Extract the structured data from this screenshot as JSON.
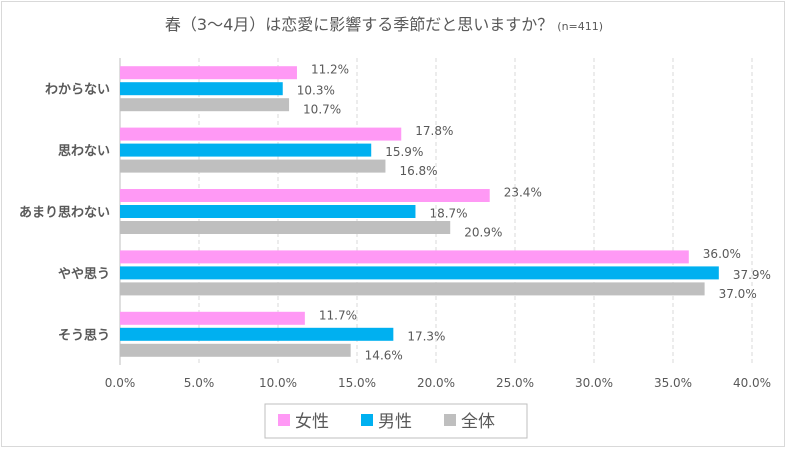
{
  "chart_data": {
    "type": "bar",
    "orientation": "horizontal",
    "title": "春（3～4月）は恋愛に影響する季節だと思いますか？",
    "subtitle": "(n=411)",
    "categories": [
      "わからない",
      "思わない",
      "あまり思わない",
      "やや思う",
      "そう思う"
    ],
    "series": [
      {
        "name": "女性",
        "color": "#FF99F5",
        "values": [
          11.2,
          17.8,
          23.4,
          36.0,
          11.7
        ]
      },
      {
        "name": "男性",
        "color": "#00B0F0",
        "values": [
          10.3,
          15.9,
          18.7,
          37.9,
          17.3
        ]
      },
      {
        "name": "全体",
        "color": "#BFBFBF",
        "values": [
          10.7,
          16.8,
          20.9,
          37.0,
          14.6
        ]
      }
    ],
    "xlim": [
      0,
      40
    ],
    "xticks": [
      "0.0%",
      "5.0%",
      "10.0%",
      "15.0%",
      "20.0%",
      "25.0%",
      "30.0%",
      "35.0%",
      "40.0%"
    ],
    "grid": "vertical dashed",
    "legend": "bottom",
    "value_format": "percent, 1 decimal"
  }
}
